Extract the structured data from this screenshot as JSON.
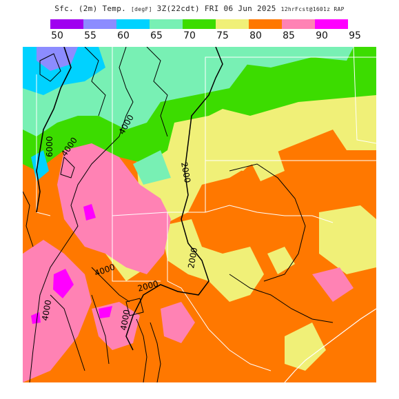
{
  "header": {
    "title_main": "Sfc. (2m) Temp.",
    "title_unit": "[degF]",
    "title_valid": "3Z(22cdt) FRI 06 Jun 2025",
    "title_fcst": "12hrFcst@1601z RAP"
  },
  "legend": {
    "ticks": [
      "50",
      "55",
      "60",
      "65",
      "70",
      "75",
      "80",
      "85",
      "90",
      "95"
    ],
    "colors": [
      "#a000f0",
      "#8c8cff",
      "#00d2ff",
      "#78f0b4",
      "#3cdc00",
      "#f0f078",
      "#ff7800",
      "#ff82b4",
      "#ff00ff"
    ]
  },
  "map": {
    "contour_labels": [
      "6000",
      "4000",
      "4000",
      "2000",
      "2000",
      "2000",
      "4000",
      "4000",
      "4000"
    ],
    "colors": {
      "t50": "#a000f0",
      "t55": "#8c8cff",
      "t60": "#00d2ff",
      "t65": "#78f0b4",
      "t70": "#3cdc00",
      "t75": "#f0f078",
      "t80": "#ff7800",
      "t85": "#ff82b4",
      "t90": "#ff00ff"
    }
  }
}
